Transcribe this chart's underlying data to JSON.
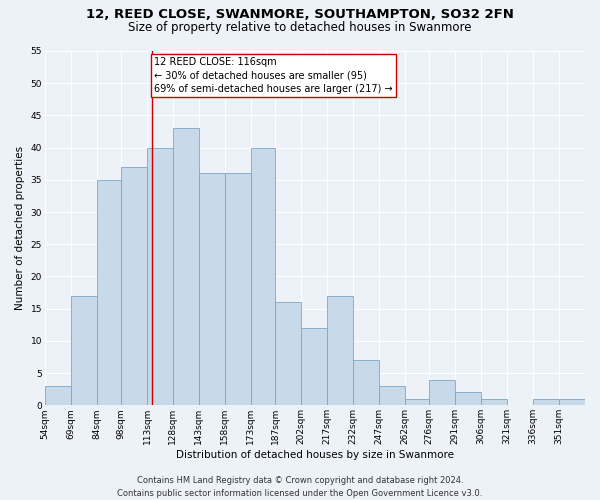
{
  "title": "12, REED CLOSE, SWANMORE, SOUTHAMPTON, SO32 2FN",
  "subtitle": "Size of property relative to detached houses in Swanmore",
  "xlabel": "Distribution of detached houses by size in Swanmore",
  "ylabel": "Number of detached properties",
  "bar_values": [
    3,
    17,
    35,
    37,
    40,
    43,
    36,
    36,
    40,
    16,
    12,
    17,
    7,
    3,
    1,
    4,
    2,
    1,
    0,
    1,
    1
  ],
  "bin_labels": [
    "54sqm",
    "69sqm",
    "84sqm",
    "98sqm",
    "113sqm",
    "128sqm",
    "143sqm",
    "158sqm",
    "173sqm",
    "187sqm",
    "202sqm",
    "217sqm",
    "232sqm",
    "247sqm",
    "262sqm",
    "276sqm",
    "291sqm",
    "306sqm",
    "321sqm",
    "336sqm",
    "351sqm"
  ],
  "bar_color": "#c8d9ea",
  "bar_edgecolor": "#7aa8c8",
  "vline_x": 116,
  "vline_color": "#cc0000",
  "annotation_text": "12 REED CLOSE: 116sqm\n← 30% of detached houses are smaller (95)\n69% of semi-detached houses are larger (217) →",
  "annotation_box_color": "#ffffff",
  "annotation_box_edgecolor": "#cc0000",
  "ylim": [
    0,
    55
  ],
  "yticks": [
    0,
    5,
    10,
    15,
    20,
    25,
    30,
    35,
    40,
    45,
    50,
    55
  ],
  "bin_edges": [
    54,
    69,
    84,
    98,
    113,
    128,
    143,
    158,
    173,
    187,
    202,
    217,
    232,
    247,
    262,
    276,
    291,
    306,
    321,
    336,
    351,
    366
  ],
  "footer_text": "Contains HM Land Registry data © Crown copyright and database right 2024.\nContains public sector information licensed under the Open Government Licence v3.0.",
  "background_color": "#edf2f8",
  "grid_color": "#ffffff",
  "title_fontsize": 9.5,
  "subtitle_fontsize": 8.5,
  "axis_label_fontsize": 7.5,
  "tick_fontsize": 6.5,
  "footer_fontsize": 6,
  "annotation_fontsize": 7
}
